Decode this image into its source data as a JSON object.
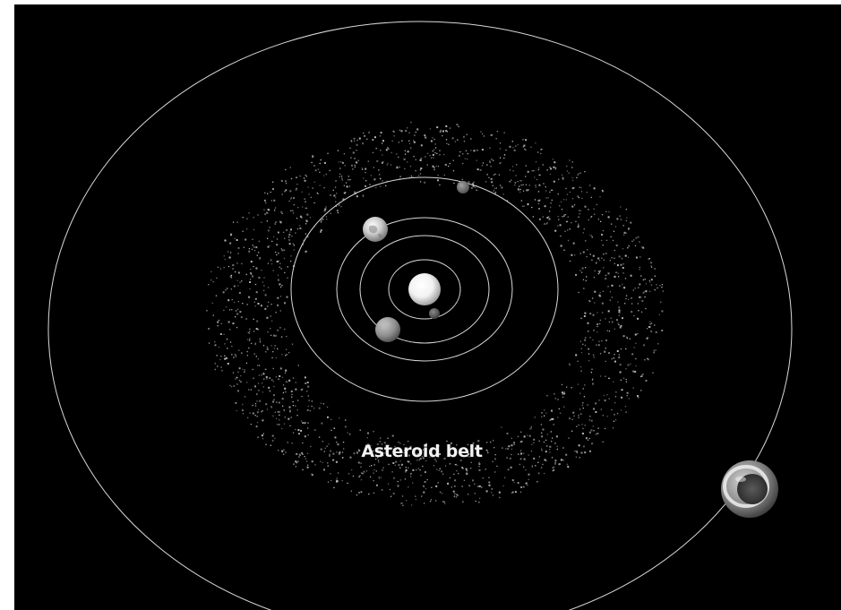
{
  "diagram": {
    "labels": {
      "asteroid_belt": "Asteroid belt"
    },
    "colors": {
      "background": "#000000",
      "orbit_line": "#d9d9d9",
      "asteroid_dot": "#bfbfbf",
      "label_text": "#f2f2f2"
    },
    "bodies": [
      "sun",
      "mercury",
      "venus",
      "earth",
      "mars",
      "jupiter"
    ]
  }
}
